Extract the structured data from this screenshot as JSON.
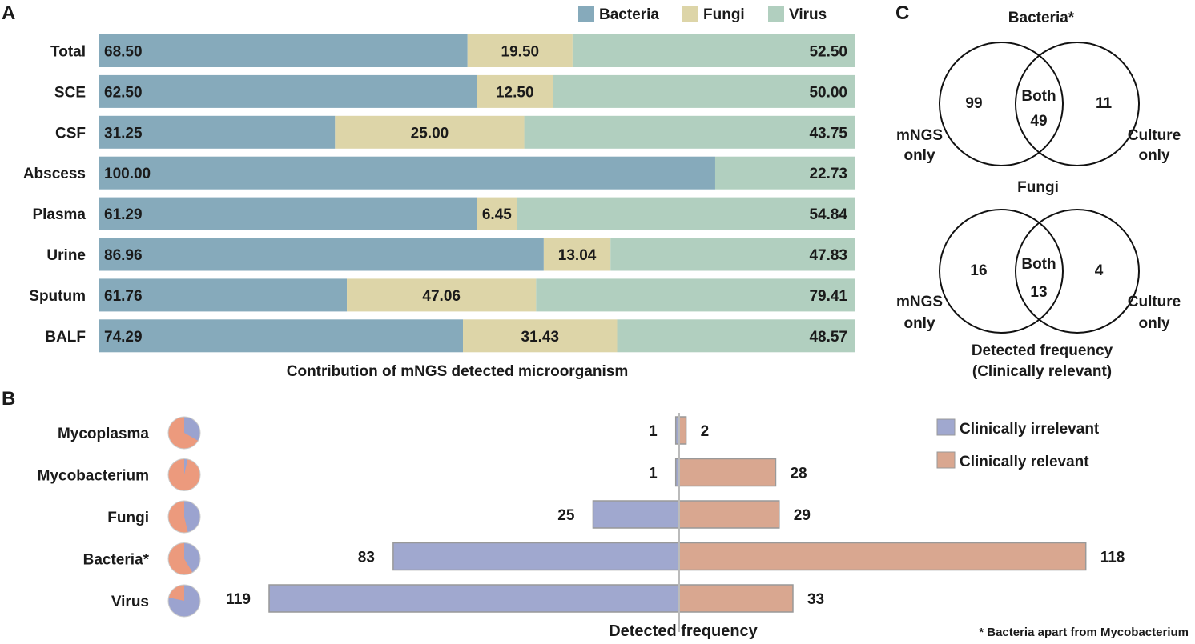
{
  "colors": {
    "bacteria": "#86aabb",
    "fungi": "#ddd5a8",
    "virus": "#b1cfbf",
    "irrelevant": "#a0a8cf",
    "relevant": "#d9a790",
    "pie_irrelevant": "#9ba3cf",
    "pie_relevant": "#ec9a7d",
    "axis_line": "#bbbbbb",
    "bar_border": "#999999"
  },
  "panels": {
    "a": "A",
    "b": "B",
    "c": "C"
  },
  "chart_data": [
    {
      "type": "bar",
      "orientation": "horizontal",
      "stacked": true,
      "title": "",
      "xlabel": "Contribution of mNGS detected microorganism",
      "ylabel": "",
      "legend": [
        "Bacteria",
        "Fungi",
        "Virus"
      ],
      "legend_position": "top-right",
      "categories": [
        "Total",
        "SCE",
        "CSF",
        "Abscess",
        "Plasma",
        "Urine",
        "Sputum",
        "BALF"
      ],
      "series": [
        {
          "name": "Bacteria",
          "values": [
            68.5,
            62.5,
            31.25,
            100.0,
            61.29,
            86.96,
            61.76,
            74.29
          ],
          "labels": [
            "68.50",
            "62.50",
            "31.25",
            "100.00",
            "61.29",
            "86.96",
            "61.76",
            "74.29"
          ]
        },
        {
          "name": "Fungi",
          "values": [
            19.5,
            12.5,
            25.0,
            0,
            6.45,
            13.04,
            47.06,
            31.43
          ],
          "labels": [
            "19.50",
            "12.50",
            "25.00",
            "",
            "6.45",
            "13.04",
            "47.06",
            "31.43"
          ]
        },
        {
          "name": "Virus",
          "values": [
            52.5,
            50.0,
            43.75,
            22.73,
            54.84,
            47.83,
            79.41,
            48.57
          ],
          "labels": [
            "52.50",
            "50.00",
            "43.75",
            "22.73",
            "54.84",
            "47.83",
            "79.41",
            "48.57"
          ]
        }
      ]
    },
    {
      "type": "bar",
      "orientation": "horizontal",
      "diverging": true,
      "title": "",
      "xlabel": "Detected frequency",
      "ylabel": "",
      "legend": [
        "Clinically irrelevant",
        "Clinically relevant"
      ],
      "legend_position": "top-right",
      "footnote": "* Bacteria apart from Mycobacterium",
      "categories": [
        "Mycoplasma",
        "Mycobacterium",
        "Fungi",
        "Bacteria*",
        "Virus"
      ],
      "series": [
        {
          "name": "Clinically irrelevant",
          "values": [
            1,
            1,
            25,
            83,
            119
          ]
        },
        {
          "name": "Clinically relevant",
          "values": [
            2,
            28,
            29,
            118,
            33
          ]
        }
      ],
      "xlim_left": 119,
      "xlim_right": 118
    },
    {
      "type": "venn",
      "title": "Bacteria*",
      "sets": [
        "mNGS only",
        "Culture only"
      ],
      "left_value": 99,
      "right_value": 11,
      "both_label": "Both",
      "both_value": 49
    },
    {
      "type": "venn",
      "title": "Fungi",
      "sets": [
        "mNGS only",
        "Culture only"
      ],
      "left_value": 16,
      "right_value": 4,
      "both_label": "Both",
      "both_value": 13,
      "caption": [
        "Detected frequency",
        "(Clinically relevant)"
      ]
    }
  ],
  "venn_text": {
    "left_line1": "mNGS",
    "left_line2": "only",
    "right_line1": "Culture",
    "right_line2": "only"
  }
}
